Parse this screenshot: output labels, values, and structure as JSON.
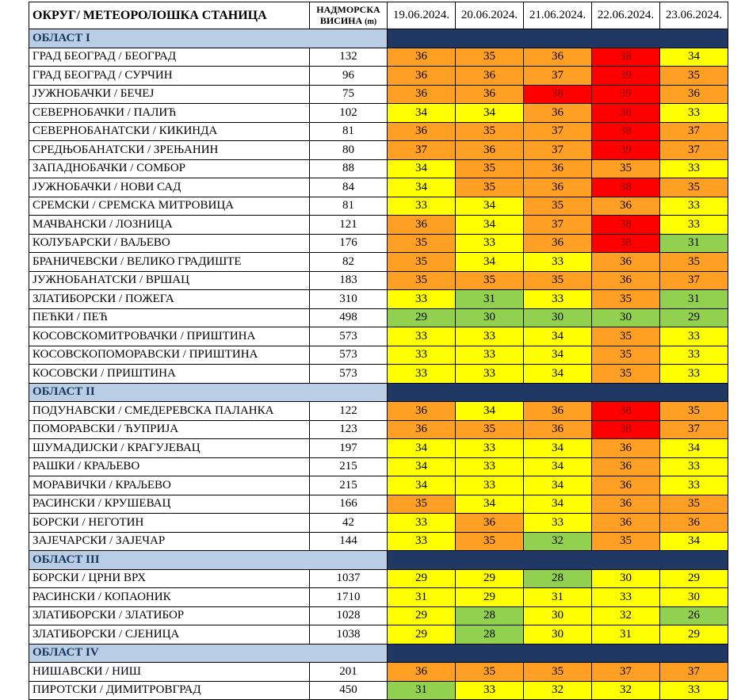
{
  "colors": {
    "orange": "#FFA024",
    "yellow": "#FFFF00",
    "red": "#FF0000",
    "green": "#92D050",
    "red_cell_text": "#7E1010",
    "section_bg_light": "#B9CDE4",
    "section_bg_dark": "#1F3864",
    "section_text": "#17365D"
  },
  "chart_data": {
    "type": "table",
    "columns": {
      "station": "ОКРУГ/ МЕТЕОРОЛОШКА СТАНИЦА",
      "altitude": {
        "line1": "НАДМОРСКА",
        "line2": "ВИСИНА",
        "unit": "(m)"
      },
      "dates": [
        "19.06.2024.",
        "20.06.2024.",
        "21.06.2024.",
        "22.06.2024.",
        "23.06.2024."
      ]
    },
    "value_unit": "max daily temperature (°C)",
    "color_legend": {
      "green": "<=32 mild",
      "yellow": "warm",
      "orange": "hot",
      "red": ">=38 very hot"
    },
    "sections": [
      {
        "label": "ОБЛАСТ I",
        "rows": [
          {
            "station": "ГРАД БЕОГРАД / БЕОГРАД",
            "altitude_m": 132,
            "temps_c": [
              36,
              35,
              36,
              38,
              34
            ],
            "cell_colors": [
              "orange",
              "orange",
              "orange",
              "red",
              "yellow"
            ]
          },
          {
            "station": "ГРАД БЕОГРАД / СУРЧИН",
            "altitude_m": 96,
            "temps_c": [
              36,
              36,
              37,
              39,
              35
            ],
            "cell_colors": [
              "orange",
              "orange",
              "orange",
              "red",
              "orange"
            ]
          },
          {
            "station": "ЈУЖНОБАЧКИ / БЕЧЕЈ",
            "altitude_m": 75,
            "temps_c": [
              36,
              36,
              38,
              39,
              36
            ],
            "cell_colors": [
              "orange",
              "orange",
              "red",
              "red",
              "orange"
            ]
          },
          {
            "station": "СЕВЕРНОБАЧКИ / ПАЛИЋ",
            "altitude_m": 102,
            "temps_c": [
              34,
              34,
              36,
              38,
              33
            ],
            "cell_colors": [
              "yellow",
              "yellow",
              "orange",
              "red",
              "yellow"
            ]
          },
          {
            "station": "СЕВЕРНОБАНАТСКИ / КИКИНДА",
            "altitude_m": 81,
            "temps_c": [
              36,
              35,
              37,
              38,
              37
            ],
            "cell_colors": [
              "orange",
              "orange",
              "orange",
              "red",
              "orange"
            ]
          },
          {
            "station": "СРЕДЊОБАНАТСКИ / ЗРЕЊАНИН",
            "altitude_m": 80,
            "temps_c": [
              37,
              36,
              37,
              39,
              37
            ],
            "cell_colors": [
              "orange",
              "orange",
              "orange",
              "red",
              "orange"
            ]
          },
          {
            "station": "ЗАПАДНОБАЧКИ / СОМБОР",
            "altitude_m": 88,
            "temps_c": [
              34,
              35,
              36,
              35,
              33
            ],
            "cell_colors": [
              "yellow",
              "orange",
              "orange",
              "orange",
              "yellow"
            ]
          },
          {
            "station": "ЈУЖНОБАЧКИ / НОВИ САД",
            "altitude_m": 84,
            "temps_c": [
              34,
              35,
              36,
              38,
              35
            ],
            "cell_colors": [
              "yellow",
              "orange",
              "orange",
              "red",
              "orange"
            ]
          },
          {
            "station": "СРЕМСКИ / СРЕМСКА МИТРОВИЦА",
            "altitude_m": 81,
            "temps_c": [
              33,
              34,
              35,
              36,
              33
            ],
            "cell_colors": [
              "yellow",
              "yellow",
              "orange",
              "orange",
              "yellow"
            ]
          },
          {
            "station": "МАЧВАНСКИ / ЛОЗНИЦА",
            "altitude_m": 121,
            "temps_c": [
              36,
              34,
              37,
              38,
              33
            ],
            "cell_colors": [
              "orange",
              "yellow",
              "orange",
              "red",
              "yellow"
            ]
          },
          {
            "station": "КОЛУБАРСКИ / ВАЉЕВО",
            "altitude_m": 176,
            "temps_c": [
              35,
              33,
              36,
              38,
              31
            ],
            "cell_colors": [
              "orange",
              "yellow",
              "orange",
              "red",
              "green"
            ]
          },
          {
            "station": "БРАНИЧЕВСКИ / ВЕЛИКО ГРАДИШТЕ",
            "altitude_m": 82,
            "temps_c": [
              35,
              34,
              33,
              36,
              35
            ],
            "cell_colors": [
              "orange",
              "yellow",
              "yellow",
              "orange",
              "orange"
            ]
          },
          {
            "station": "ЈУЖНОБАНАТСКИ / ВРШАЦ",
            "altitude_m": 183,
            "temps_c": [
              35,
              35,
              35,
              36,
              37
            ],
            "cell_colors": [
              "orange",
              "orange",
              "orange",
              "orange",
              "orange"
            ]
          },
          {
            "station": "ЗЛАТИБОРСКИ / ПОЖЕГА",
            "altitude_m": 310,
            "temps_c": [
              33,
              31,
              33,
              35,
              31
            ],
            "cell_colors": [
              "yellow",
              "green",
              "yellow",
              "orange",
              "green"
            ]
          },
          {
            "station": "ПЕЋКИ / ПЕЋ",
            "altitude_m": 498,
            "temps_c": [
              29,
              30,
              30,
              30,
              29
            ],
            "cell_colors": [
              "green",
              "green",
              "green",
              "green",
              "green"
            ]
          },
          {
            "station": "КОСОВСКОМИТРОВАЧКИ / ПРИШТИНА",
            "altitude_m": 573,
            "temps_c": [
              33,
              33,
              34,
              35,
              33
            ],
            "cell_colors": [
              "yellow",
              "yellow",
              "yellow",
              "orange",
              "yellow"
            ]
          },
          {
            "station": "КОСОВСКОПОМОРАВСКИ / ПРИШТИНА",
            "altitude_m": 573,
            "temps_c": [
              33,
              33,
              34,
              35,
              33
            ],
            "cell_colors": [
              "yellow",
              "yellow",
              "yellow",
              "orange",
              "yellow"
            ]
          },
          {
            "station": "КОСОВСКИ / ПРИШТИНА",
            "altitude_m": 573,
            "temps_c": [
              33,
              33,
              34,
              35,
              33
            ],
            "cell_colors": [
              "yellow",
              "yellow",
              "yellow",
              "orange",
              "yellow"
            ]
          }
        ]
      },
      {
        "label": "ОБЛАСТ II",
        "rows": [
          {
            "station": "ПОДУНАВСКИ / СМЕДЕРЕВСКА ПАЛАНКА",
            "altitude_m": 122,
            "temps_c": [
              36,
              34,
              36,
              38,
              35
            ],
            "cell_colors": [
              "orange",
              "yellow",
              "orange",
              "red",
              "orange"
            ]
          },
          {
            "station": "ПОМОРАВСКИ / ЋУПРИЈА",
            "altitude_m": 123,
            "temps_c": [
              36,
              35,
              36,
              38,
              37
            ],
            "cell_colors": [
              "orange",
              "orange",
              "orange",
              "red",
              "orange"
            ]
          },
          {
            "station": "ШУМАДИЈСКИ / КРАГУЈЕВАЦ",
            "altitude_m": 197,
            "temps_c": [
              34,
              33,
              34,
              36,
              34
            ],
            "cell_colors": [
              "yellow",
              "yellow",
              "yellow",
              "orange",
              "yellow"
            ]
          },
          {
            "station": "РАШКИ / КРАЉЕВО",
            "altitude_m": 215,
            "temps_c": [
              34,
              33,
              34,
              36,
              33
            ],
            "cell_colors": [
              "yellow",
              "yellow",
              "yellow",
              "orange",
              "yellow"
            ]
          },
          {
            "station": "МОРАВИЧКИ / КРАЉЕВО",
            "altitude_m": 215,
            "temps_c": [
              34,
              33,
              34,
              36,
              33
            ],
            "cell_colors": [
              "yellow",
              "yellow",
              "yellow",
              "orange",
              "yellow"
            ]
          },
          {
            "station": "РАСИНСКИ / КРУШЕВАЦ",
            "altitude_m": 166,
            "temps_c": [
              35,
              34,
              34,
              36,
              35
            ],
            "cell_colors": [
              "orange",
              "yellow",
              "yellow",
              "orange",
              "orange"
            ]
          },
          {
            "station": "БОРСКИ / НЕГОТИН",
            "altitude_m": 42,
            "temps_c": [
              33,
              36,
              33,
              36,
              36
            ],
            "cell_colors": [
              "yellow",
              "orange",
              "yellow",
              "orange",
              "orange"
            ]
          },
          {
            "station": "ЗАЈЕЧАРСКИ / ЗАЈЕЧАР",
            "altitude_m": 144,
            "temps_c": [
              33,
              35,
              32,
              35,
              34
            ],
            "cell_colors": [
              "yellow",
              "orange",
              "green",
              "orange",
              "yellow"
            ]
          }
        ]
      },
      {
        "label": "ОБЛАСТ III",
        "rows": [
          {
            "station": "БОРСКИ / ЦРНИ ВРХ",
            "altitude_m": 1037,
            "temps_c": [
              29,
              29,
              28,
              30,
              29
            ],
            "cell_colors": [
              "yellow",
              "yellow",
              "green",
              "yellow",
              "yellow"
            ]
          },
          {
            "station": "РАСИНСКИ / КОПАОНИК",
            "altitude_m": 1710,
            "temps_c": [
              31,
              29,
              31,
              33,
              30
            ],
            "cell_colors": [
              "yellow",
              "yellow",
              "yellow",
              "yellow",
              "yellow"
            ]
          },
          {
            "station": "ЗЛАТИБОРСКИ / ЗЛАТИБОР",
            "altitude_m": 1028,
            "temps_c": [
              29,
              28,
              30,
              32,
              26
            ],
            "cell_colors": [
              "yellow",
              "green",
              "yellow",
              "yellow",
              "green"
            ]
          },
          {
            "station": "ЗЛАТИБОРСКИ / СЈЕНИЦА",
            "altitude_m": 1038,
            "temps_c": [
              29,
              28,
              30,
              31,
              29
            ],
            "cell_colors": [
              "yellow",
              "green",
              "yellow",
              "yellow",
              "yellow"
            ]
          }
        ]
      },
      {
        "label": "ОБЛАСТ IV",
        "rows": [
          {
            "station": "НИШАВСКИ / НИШ",
            "altitude_m": 201,
            "temps_c": [
              36,
              35,
              35,
              37,
              37
            ],
            "cell_colors": [
              "orange",
              "orange",
              "orange",
              "orange",
              "orange"
            ]
          },
          {
            "station": "ПИРОТСКИ / ДИМИТРОВГРАД",
            "altitude_m": 450,
            "temps_c": [
              31,
              33,
              32,
              32,
              33
            ],
            "cell_colors": [
              "green",
              "yellow",
              "yellow",
              "yellow",
              "yellow"
            ]
          }
        ]
      }
    ]
  }
}
